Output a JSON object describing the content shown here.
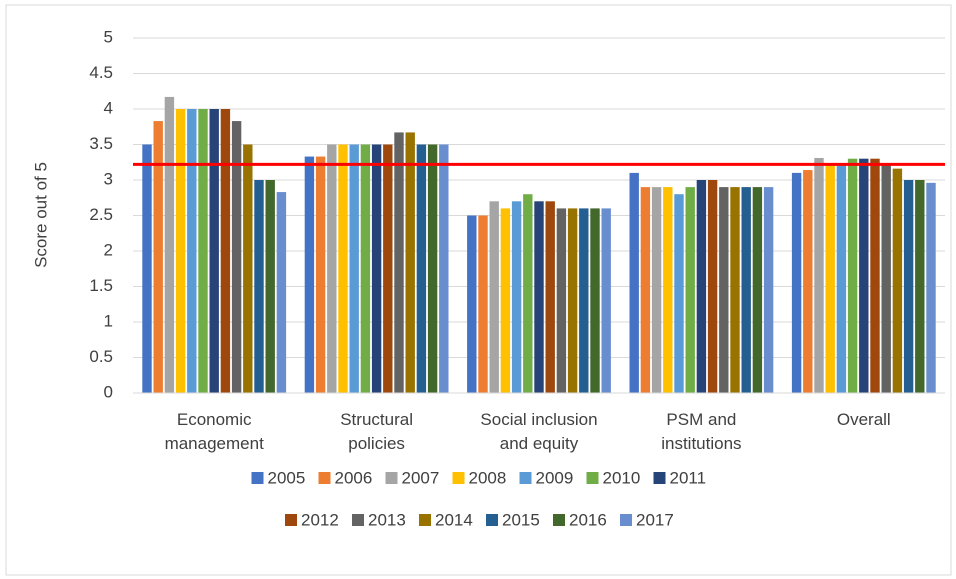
{
  "chart_data": {
    "type": "bar",
    "y_label": "Score out of 5",
    "categories": [
      "Economic management",
      "Structural policies",
      "Social inclusion and equity",
      "PSM and institutions",
      "Overall"
    ],
    "series": [
      {
        "name": "2005",
        "color": "#4472c4",
        "values": [
          3.5,
          3.33,
          2.5,
          3.1,
          3.1
        ]
      },
      {
        "name": "2006",
        "color": "#ed7d31",
        "values": [
          3.83,
          3.33,
          2.5,
          2.9,
          3.14
        ]
      },
      {
        "name": "2007",
        "color": "#a5a5a5",
        "values": [
          4.17,
          3.5,
          2.7,
          2.9,
          3.31
        ]
      },
      {
        "name": "2008",
        "color": "#ffc000",
        "values": [
          4.0,
          3.5,
          2.6,
          2.9,
          3.22
        ]
      },
      {
        "name": "2009",
        "color": "#5b9bd5",
        "values": [
          4.0,
          3.5,
          2.7,
          2.8,
          3.22
        ]
      },
      {
        "name": "2010",
        "color": "#70ad47",
        "values": [
          4.0,
          3.5,
          2.8,
          2.9,
          3.3
        ]
      },
      {
        "name": "2011",
        "color": "#264478",
        "values": [
          4.0,
          3.5,
          2.7,
          3.0,
          3.3
        ]
      },
      {
        "name": "2012",
        "color": "#9e480e",
        "values": [
          4.0,
          3.5,
          2.7,
          3.0,
          3.3
        ]
      },
      {
        "name": "2013",
        "color": "#636363",
        "values": [
          3.83,
          3.67,
          2.6,
          2.9,
          3.22
        ]
      },
      {
        "name": "2014",
        "color": "#997300",
        "values": [
          3.5,
          3.67,
          2.6,
          2.9,
          3.16
        ]
      },
      {
        "name": "2015",
        "color": "#255e91",
        "values": [
          3.0,
          3.5,
          2.6,
          2.9,
          3.0
        ]
      },
      {
        "name": "2016",
        "color": "#43682b",
        "values": [
          3.0,
          3.5,
          2.6,
          2.9,
          3.0
        ]
      },
      {
        "name": "2017",
        "color": "#698ed0",
        "values": [
          2.83,
          3.5,
          2.6,
          2.9,
          2.96
        ]
      }
    ],
    "ylim": [
      0,
      5
    ],
    "yticks": [
      0,
      0.5,
      1,
      1.5,
      2,
      2.5,
      3,
      3.5,
      4,
      4.5,
      5
    ],
    "grid": true,
    "reference_line": {
      "value": 3.22,
      "color": "#ff0000"
    },
    "legend": "bottom"
  }
}
